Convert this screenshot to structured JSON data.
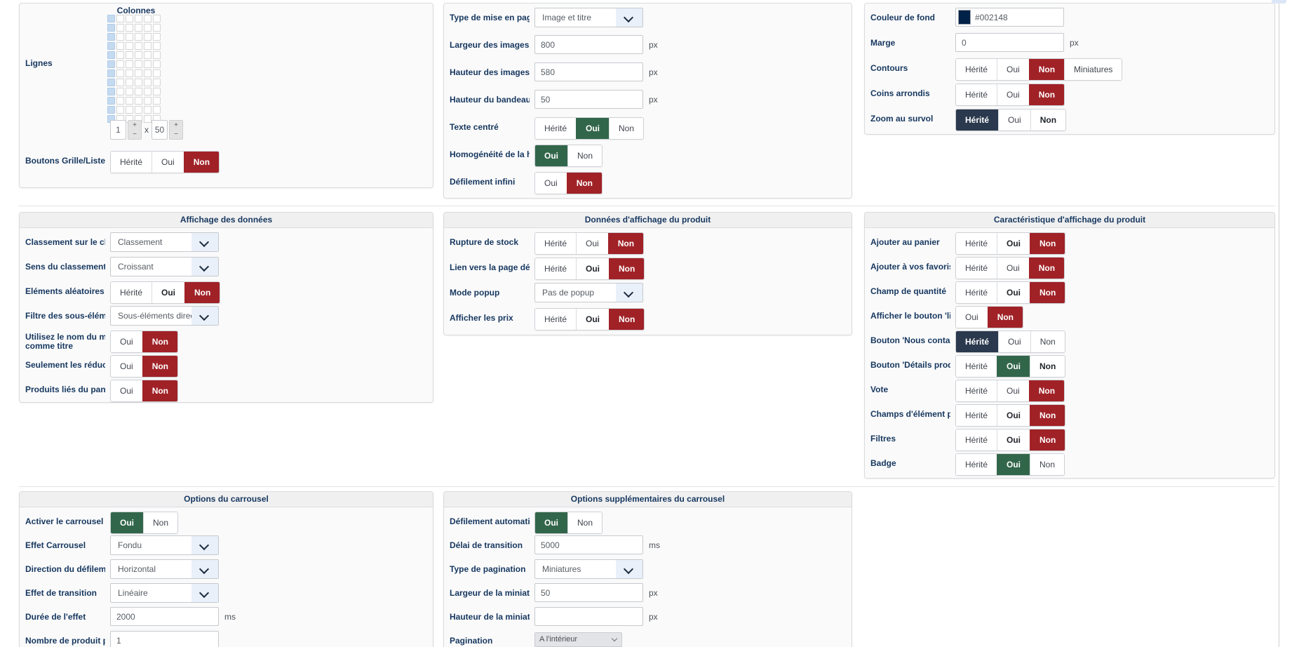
{
  "colors": {
    "accent_red": "#a02227",
    "accent_green": "#32664a",
    "accent_navy": "#2b394e",
    "label_navy": "#16375e",
    "background_swatch": "#002148"
  },
  "panels": [
    {
      "name": "grille-lignes",
      "title": null,
      "gap": 9,
      "fields": [
        {
          "type": "grid",
          "name": "lignes-colonnes-grid",
          "label": "Lignes",
          "grid_label": "Colonnes",
          "cols": 6,
          "rows": 12,
          "selected_cols": 1,
          "stepper": {
            "col_value": "1",
            "row_value": "50",
            "x_label": "x",
            "plus": "+",
            "minus": "−"
          }
        },
        {
          "type": "buttons",
          "name": "boutons-grille-liste",
          "label": "Boutons Grille/Liste",
          "options": [
            {
              "t": "Hérité"
            },
            {
              "t": "Oui"
            },
            {
              "t": "Non",
              "sel": "red"
            }
          ]
        }
      ]
    },
    {
      "name": "mise-en-page",
      "title": null,
      "gap": 9,
      "fields": [
        {
          "type": "select",
          "name": "layout-type",
          "label": "Type de mise en page",
          "value": "Image et titre"
        },
        {
          "type": "input",
          "name": "image-width",
          "label": "Largeur des images",
          "value": "800",
          "unit": "px"
        },
        {
          "type": "input",
          "name": "image-height",
          "label": "Hauteur des images",
          "value": "580",
          "unit": "px"
        },
        {
          "type": "input",
          "name": "banner-height",
          "label": "Hauteur du bandeau",
          "value": "50",
          "unit": "px"
        },
        {
          "type": "buttons",
          "name": "text-centered",
          "label": "Texte centré",
          "options": [
            {
              "t": "Hérité"
            },
            {
              "t": "Oui",
              "sel": "green"
            },
            {
              "t": "Non"
            }
          ]
        },
        {
          "type": "buttons",
          "name": "height-homogeneity",
          "label": "Homogénéité de la hau",
          "options": [
            {
              "t": "Oui",
              "sel": "green"
            },
            {
              "t": "Non"
            }
          ]
        },
        {
          "type": "buttons",
          "name": "infinite-scroll",
          "label": "Défilement infini",
          "options": [
            {
              "t": "Oui"
            },
            {
              "t": "Non",
              "sel": "red"
            }
          ]
        }
      ]
    },
    {
      "name": "apparence",
      "title": null,
      "gap": 6,
      "fields": [
        {
          "type": "color",
          "name": "background-color",
          "label": "Couleur de fond",
          "value": "#002148",
          "swatch": "#002148"
        },
        {
          "type": "input",
          "name": "margin",
          "label": "Marge",
          "value": "0",
          "unit": "px"
        },
        {
          "type": "buttons",
          "name": "borders",
          "label": "Contours",
          "options": [
            {
              "t": "Hérité"
            },
            {
              "t": "Oui"
            },
            {
              "t": "Non",
              "sel": "red"
            },
            {
              "t": "Miniatures"
            }
          ]
        },
        {
          "type": "buttons",
          "name": "rounded-corners",
          "label": "Coins arrondis",
          "options": [
            {
              "t": "Hérité"
            },
            {
              "t": "Oui"
            },
            {
              "t": "Non",
              "sel": "red"
            }
          ]
        },
        {
          "type": "buttons",
          "name": "hover-zoom",
          "label": "Zoom au survol",
          "options": [
            {
              "t": "Hérité",
              "sel": "navy"
            },
            {
              "t": "Oui"
            },
            {
              "t": "Non",
              "bold": true
            }
          ]
        }
      ]
    },
    {
      "name": "affichage-donnees",
      "title": "Affichage des données",
      "gap": 5,
      "fields": [
        {
          "type": "select",
          "name": "sort-field",
          "label": "Classement sur le cha",
          "value": "Classement"
        },
        {
          "type": "select",
          "name": "sort-direction",
          "label": "Sens du classement",
          "value": "Croissant"
        },
        {
          "type": "buttons",
          "name": "random-elements",
          "label": "Eléments aléatoires",
          "options": [
            {
              "t": "Hérité"
            },
            {
              "t": "Oui",
              "bold": true
            },
            {
              "t": "Non",
              "sel": "red"
            }
          ]
        },
        {
          "type": "select",
          "name": "subelement-filter",
          "label": "Filtre des sous-élémen",
          "value": "Sous-éléments directs"
        },
        {
          "type": "buttons",
          "name": "merchant-name-as-title",
          "label": "Utilisez le nom du mer",
          "label2": "comme titre",
          "options": [
            {
              "t": "Oui"
            },
            {
              "t": "Non",
              "sel": "red"
            }
          ]
        },
        {
          "type": "buttons",
          "name": "discounts-only",
          "label": "Seulement les réductio",
          "options": [
            {
              "t": "Oui"
            },
            {
              "t": "Non",
              "sel": "red"
            }
          ]
        },
        {
          "type": "buttons",
          "name": "cart-related-products",
          "label": "Produits liés du panier",
          "options": [
            {
              "t": "Oui"
            },
            {
              "t": "Non",
              "sel": "red"
            }
          ]
        }
      ]
    },
    {
      "name": "donnees-affichage-produit",
      "title": "Données d'affichage du produit",
      "gap": 6,
      "fields": [
        {
          "type": "buttons",
          "name": "out-of-stock",
          "label": "Rupture de stock",
          "options": [
            {
              "t": "Hérité"
            },
            {
              "t": "Oui"
            },
            {
              "t": "Non",
              "sel": "red"
            }
          ]
        },
        {
          "type": "buttons",
          "name": "detail-page-link",
          "label": "Lien vers la page détai",
          "options": [
            {
              "t": "Hérité"
            },
            {
              "t": "Oui",
              "bold": true
            },
            {
              "t": "Non",
              "sel": "red"
            }
          ]
        },
        {
          "type": "select",
          "name": "popup-mode",
          "label": "Mode popup",
          "value": "Pas de popup"
        },
        {
          "type": "buttons",
          "name": "show-prices",
          "label": "Afficher les prix",
          "options": [
            {
              "t": "Hérité"
            },
            {
              "t": "Oui",
              "bold": true
            },
            {
              "t": "Non",
              "sel": "red"
            }
          ]
        }
      ]
    },
    {
      "name": "caracteristique-affichage-produit",
      "title": "Caractéristique d'affichage du produit",
      "gap": 5,
      "fields": [
        {
          "type": "buttons",
          "name": "add-to-cart",
          "label": "Ajouter au panier",
          "options": [
            {
              "t": "Hérité"
            },
            {
              "t": "Oui",
              "bold": true
            },
            {
              "t": "Non",
              "sel": "red"
            }
          ]
        },
        {
          "type": "buttons",
          "name": "add-to-favorites",
          "label": "Ajouter à vos favoris",
          "options": [
            {
              "t": "Hérité"
            },
            {
              "t": "Oui"
            },
            {
              "t": "Non",
              "sel": "red"
            }
          ]
        },
        {
          "type": "buttons",
          "name": "quantity-field",
          "label": "Champ de quantité",
          "options": [
            {
              "t": "Hérité"
            },
            {
              "t": "Oui",
              "bold": true
            },
            {
              "t": "Non",
              "sel": "red"
            }
          ]
        },
        {
          "type": "buttons",
          "name": "list-button",
          "label": "Afficher le bouton 'list",
          "options": [
            {
              "t": "Oui"
            },
            {
              "t": "Non",
              "sel": "red"
            }
          ]
        },
        {
          "type": "buttons",
          "name": "contact-us-button",
          "label": "Bouton 'Nous contacte",
          "options": [
            {
              "t": "Hérité",
              "sel": "navy"
            },
            {
              "t": "Oui"
            },
            {
              "t": "Non"
            }
          ]
        },
        {
          "type": "buttons",
          "name": "product-details-button",
          "label": "Bouton 'Détails produi",
          "options": [
            {
              "t": "Hérité"
            },
            {
              "t": "Oui",
              "sel": "green"
            },
            {
              "t": "Non",
              "bold": true
            }
          ]
        },
        {
          "type": "buttons",
          "name": "vote",
          "label": "Vote",
          "options": [
            {
              "t": "Hérité"
            },
            {
              "t": "Oui"
            },
            {
              "t": "Non",
              "sel": "red"
            }
          ]
        },
        {
          "type": "buttons",
          "name": "custom-item-fields",
          "label": "Champs d'élément per",
          "options": [
            {
              "t": "Hérité"
            },
            {
              "t": "Oui",
              "bold": true
            },
            {
              "t": "Non",
              "sel": "red"
            }
          ]
        },
        {
          "type": "buttons",
          "name": "filters",
          "label": "Filtres",
          "options": [
            {
              "t": "Hérité"
            },
            {
              "t": "Oui",
              "bold": true
            },
            {
              "t": "Non",
              "sel": "red"
            }
          ]
        },
        {
          "type": "buttons",
          "name": "badge",
          "label": "Badge",
          "options": [
            {
              "t": "Hérité"
            },
            {
              "t": "Oui",
              "sel": "green"
            },
            {
              "t": "Non"
            }
          ]
        }
      ]
    },
    {
      "name": "options-carrousel",
      "title": "Options du carrousel",
      "gap": 4,
      "fields": [
        {
          "type": "buttons",
          "name": "enable-carousel",
          "label": "Activer le carrousel",
          "options": [
            {
              "t": "Oui",
              "sel": "green"
            },
            {
              "t": "Non"
            }
          ]
        },
        {
          "type": "select",
          "name": "carousel-effect",
          "label": "Effet Carrousel",
          "value": "Fondu"
        },
        {
          "type": "select",
          "name": "scroll-direction",
          "label": "Direction du défilemen",
          "value": "Horizontal"
        },
        {
          "type": "select",
          "name": "transition-effect",
          "label": "Effet de transition",
          "value": "Linéaire"
        },
        {
          "type": "input",
          "name": "effect-duration",
          "label": "Durée de l'effet",
          "value": "2000",
          "unit": "ms"
        },
        {
          "type": "input",
          "name": "products-per-slide",
          "label": "Nombre de produit par",
          "value": "1"
        }
      ]
    },
    {
      "name": "options-supplementaires-carrousel",
      "title": "Options supplémentaires du carrousel",
      "gap": 4,
      "fields": [
        {
          "type": "buttons",
          "name": "auto-scroll",
          "label": "Défilement automatiqu",
          "options": [
            {
              "t": "Oui",
              "sel": "green"
            },
            {
              "t": "Non"
            }
          ]
        },
        {
          "type": "input",
          "name": "transition-delay",
          "label": "Délai de transition",
          "value": "5000",
          "unit": "ms"
        },
        {
          "type": "select",
          "name": "pagination-type",
          "label": "Type de pagination",
          "value": "Miniatures"
        },
        {
          "type": "input",
          "name": "thumbnail-width",
          "label": "Largeur de la miniatur",
          "value": "50",
          "unit": "px"
        },
        {
          "type": "input",
          "name": "thumbnail-height",
          "label": "Hauteur de la miniatur",
          "value": "",
          "unit": "px"
        },
        {
          "type": "nselect",
          "name": "pagination-position",
          "label": "Pagination",
          "value": "A l'intérieur"
        }
      ]
    }
  ]
}
